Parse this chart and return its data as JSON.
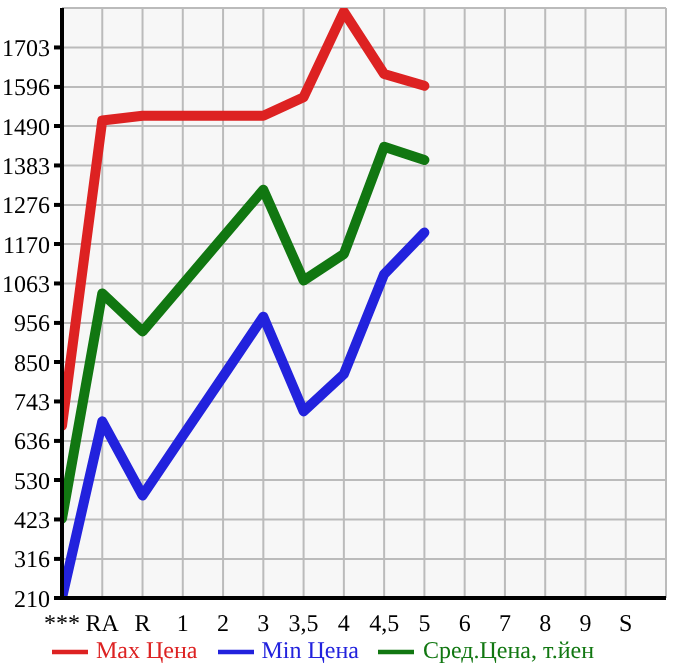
{
  "chart_data": {
    "type": "line",
    "categories": [
      "***",
      "RA",
      "R",
      "1",
      "2",
      "3",
      "3,5",
      "4",
      "4,5",
      "5",
      "6",
      "7",
      "8",
      "9",
      "S"
    ],
    "series": [
      {
        "name": "Max Цена",
        "color": "#dd2222",
        "values": [
          677,
          1505,
          1518,
          1518,
          1518,
          1518,
          1568,
          1800,
          1631,
          1599,
          null,
          null,
          null,
          null,
          null
        ]
      },
      {
        "name": "Min Цена",
        "color": "#2222dd",
        "values": [
          210,
          689,
          488,
          650,
          811,
          973,
          716,
          817,
          1088,
          1201,
          null,
          null,
          null,
          null,
          null
        ]
      },
      {
        "name": "Сред.Цена, т.йен",
        "color": "#117711",
        "values": [
          425,
          1036,
          933,
          1061,
          1189,
          1317,
          1071,
          1143,
          1434,
          1398,
          null,
          null,
          null,
          null,
          null
        ]
      }
    ],
    "ylim": [
      210,
      1810
    ],
    "yticks": [
      210,
      316,
      423,
      530,
      636,
      743,
      850,
      956,
      1063,
      1170,
      1276,
      1383,
      1490,
      1596,
      1703
    ],
    "grid": true,
    "legend": "bottom",
    "marker": "none",
    "line_style": "solid"
  }
}
